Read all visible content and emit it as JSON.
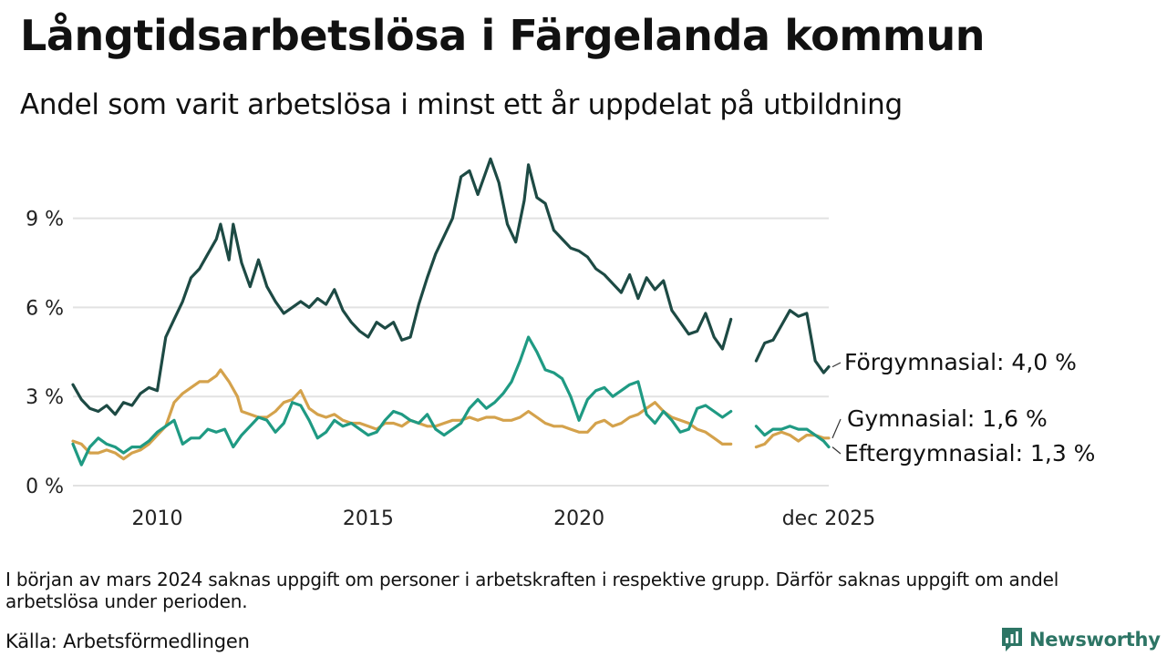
{
  "header": {
    "title": "Långtidsarbetslösa i Färgelanda kommun",
    "subtitle": "Andel som varit arbetslösa i minst ett år uppdelat på utbildning"
  },
  "footer": {
    "note": "I början av mars 2024 saknas uppgift om personer i arbetskraften i respektive grupp. Därför saknas uppgift om andel arbetslösa under perioden.",
    "source": "Källa: Arbetsförmedlingen",
    "brand": "Newsworthy"
  },
  "chart_data": {
    "type": "line",
    "title": "Långtidsarbetslösa i Färgelanda kommun",
    "subtitle": "Andel som varit arbetslösa i minst ett år uppdelat på utbildning",
    "xlabel": "",
    "ylabel": "",
    "x_unit": "year",
    "xlim": [
      2008.0,
      2025.92
    ],
    "ylim": [
      0,
      11.5
    ],
    "grid": true,
    "yticks": [
      {
        "value": 0,
        "label": "0 %"
      },
      {
        "value": 3,
        "label": "3 %"
      },
      {
        "value": 6,
        "label": "6 %"
      },
      {
        "value": 9,
        "label": "9 %"
      }
    ],
    "xticks": [
      {
        "value": 2010,
        "label": "2010"
      },
      {
        "value": 2015,
        "label": "2015"
      },
      {
        "value": 2020,
        "label": "2020"
      },
      {
        "value": 2025.92,
        "label": "dec 2025"
      }
    ],
    "gap": {
      "from": 2023.8,
      "to": 2024.2
    },
    "series": [
      {
        "name": "Förgymnasial",
        "label": "Förgymnasial: 4,0 %",
        "color": "#1d4a44",
        "points": [
          [
            2008.0,
            3.4
          ],
          [
            2008.2,
            2.9
          ],
          [
            2008.4,
            2.6
          ],
          [
            2008.6,
            2.5
          ],
          [
            2008.8,
            2.7
          ],
          [
            2009.0,
            2.4
          ],
          [
            2009.2,
            2.8
          ],
          [
            2009.4,
            2.7
          ],
          [
            2009.6,
            3.1
          ],
          [
            2009.8,
            3.3
          ],
          [
            2010.0,
            3.2
          ],
          [
            2010.2,
            5.0
          ],
          [
            2010.4,
            5.6
          ],
          [
            2010.6,
            6.2
          ],
          [
            2010.8,
            7.0
          ],
          [
            2011.0,
            7.3
          ],
          [
            2011.2,
            7.8
          ],
          [
            2011.4,
            8.3
          ],
          [
            2011.5,
            8.8
          ],
          [
            2011.7,
            7.6
          ],
          [
            2011.8,
            8.8
          ],
          [
            2012.0,
            7.5
          ],
          [
            2012.2,
            6.7
          ],
          [
            2012.4,
            7.6
          ],
          [
            2012.6,
            6.7
          ],
          [
            2012.8,
            6.2
          ],
          [
            2013.0,
            5.8
          ],
          [
            2013.2,
            6.0
          ],
          [
            2013.4,
            6.2
          ],
          [
            2013.6,
            6.0
          ],
          [
            2013.8,
            6.3
          ],
          [
            2014.0,
            6.1
          ],
          [
            2014.2,
            6.6
          ],
          [
            2014.4,
            5.9
          ],
          [
            2014.6,
            5.5
          ],
          [
            2014.8,
            5.2
          ],
          [
            2015.0,
            5.0
          ],
          [
            2015.2,
            5.5
          ],
          [
            2015.4,
            5.3
          ],
          [
            2015.6,
            5.5
          ],
          [
            2015.8,
            4.9
          ],
          [
            2016.0,
            5.0
          ],
          [
            2016.2,
            6.1
          ],
          [
            2016.4,
            7.0
          ],
          [
            2016.6,
            7.8
          ],
          [
            2016.8,
            8.4
          ],
          [
            2017.0,
            9.0
          ],
          [
            2017.2,
            10.4
          ],
          [
            2017.4,
            10.6
          ],
          [
            2017.6,
            9.8
          ],
          [
            2017.8,
            10.6
          ],
          [
            2017.9,
            11.0
          ],
          [
            2018.1,
            10.2
          ],
          [
            2018.3,
            8.8
          ],
          [
            2018.5,
            8.2
          ],
          [
            2018.7,
            9.6
          ],
          [
            2018.8,
            10.8
          ],
          [
            2019.0,
            9.7
          ],
          [
            2019.2,
            9.5
          ],
          [
            2019.4,
            8.6
          ],
          [
            2019.6,
            8.3
          ],
          [
            2019.8,
            8.0
          ],
          [
            2020.0,
            7.9
          ],
          [
            2020.2,
            7.7
          ],
          [
            2020.4,
            7.3
          ],
          [
            2020.6,
            7.1
          ],
          [
            2020.8,
            6.8
          ],
          [
            2021.0,
            6.5
          ],
          [
            2021.2,
            7.1
          ],
          [
            2021.4,
            6.3
          ],
          [
            2021.6,
            7.0
          ],
          [
            2021.8,
            6.6
          ],
          [
            2022.0,
            6.9
          ],
          [
            2022.2,
            5.9
          ],
          [
            2022.4,
            5.5
          ],
          [
            2022.6,
            5.1
          ],
          [
            2022.8,
            5.2
          ],
          [
            2023.0,
            5.8
          ],
          [
            2023.2,
            5.0
          ],
          [
            2023.4,
            4.6
          ],
          [
            2023.6,
            5.6
          ],
          [
            2024.2,
            4.2
          ],
          [
            2024.4,
            4.8
          ],
          [
            2024.6,
            4.9
          ],
          [
            2024.8,
            5.4
          ],
          [
            2025.0,
            5.9
          ],
          [
            2025.2,
            5.7
          ],
          [
            2025.4,
            5.8
          ],
          [
            2025.6,
            4.2
          ],
          [
            2025.8,
            3.8
          ],
          [
            2025.92,
            4.0
          ]
        ]
      },
      {
        "name": "Gymnasial",
        "label": "Gymnasial: 1,6 %",
        "color": "#d4a24c",
        "points": [
          [
            2008.0,
            1.5
          ],
          [
            2008.2,
            1.4
          ],
          [
            2008.4,
            1.1
          ],
          [
            2008.6,
            1.1
          ],
          [
            2008.8,
            1.2
          ],
          [
            2009.0,
            1.1
          ],
          [
            2009.2,
            0.9
          ],
          [
            2009.4,
            1.1
          ],
          [
            2009.6,
            1.2
          ],
          [
            2009.8,
            1.4
          ],
          [
            2010.0,
            1.7
          ],
          [
            2010.2,
            2.0
          ],
          [
            2010.4,
            2.8
          ],
          [
            2010.6,
            3.1
          ],
          [
            2010.8,
            3.3
          ],
          [
            2011.0,
            3.5
          ],
          [
            2011.2,
            3.5
          ],
          [
            2011.4,
            3.7
          ],
          [
            2011.5,
            3.9
          ],
          [
            2011.7,
            3.5
          ],
          [
            2011.9,
            3.0
          ],
          [
            2012.0,
            2.5
          ],
          [
            2012.2,
            2.4
          ],
          [
            2012.4,
            2.3
          ],
          [
            2012.6,
            2.3
          ],
          [
            2012.8,
            2.5
          ],
          [
            2013.0,
            2.8
          ],
          [
            2013.2,
            2.9
          ],
          [
            2013.4,
            3.2
          ],
          [
            2013.6,
            2.6
          ],
          [
            2013.8,
            2.4
          ],
          [
            2014.0,
            2.3
          ],
          [
            2014.2,
            2.4
          ],
          [
            2014.4,
            2.2
          ],
          [
            2014.6,
            2.1
          ],
          [
            2014.8,
            2.1
          ],
          [
            2015.0,
            2.0
          ],
          [
            2015.2,
            1.9
          ],
          [
            2015.4,
            2.1
          ],
          [
            2015.6,
            2.1
          ],
          [
            2015.8,
            2.0
          ],
          [
            2016.0,
            2.2
          ],
          [
            2016.2,
            2.1
          ],
          [
            2016.4,
            2.0
          ],
          [
            2016.6,
            2.0
          ],
          [
            2016.8,
            2.1
          ],
          [
            2017.0,
            2.2
          ],
          [
            2017.2,
            2.2
          ],
          [
            2017.4,
            2.3
          ],
          [
            2017.6,
            2.2
          ],
          [
            2017.8,
            2.3
          ],
          [
            2018.0,
            2.3
          ],
          [
            2018.2,
            2.2
          ],
          [
            2018.4,
            2.2
          ],
          [
            2018.6,
            2.3
          ],
          [
            2018.8,
            2.5
          ],
          [
            2019.0,
            2.3
          ],
          [
            2019.2,
            2.1
          ],
          [
            2019.4,
            2.0
          ],
          [
            2019.6,
            2.0
          ],
          [
            2019.8,
            1.9
          ],
          [
            2020.0,
            1.8
          ],
          [
            2020.2,
            1.8
          ],
          [
            2020.4,
            2.1
          ],
          [
            2020.6,
            2.2
          ],
          [
            2020.8,
            2.0
          ],
          [
            2021.0,
            2.1
          ],
          [
            2021.2,
            2.3
          ],
          [
            2021.4,
            2.4
          ],
          [
            2021.6,
            2.6
          ],
          [
            2021.8,
            2.8
          ],
          [
            2022.0,
            2.5
          ],
          [
            2022.2,
            2.3
          ],
          [
            2022.4,
            2.2
          ],
          [
            2022.6,
            2.1
          ],
          [
            2022.8,
            1.9
          ],
          [
            2023.0,
            1.8
          ],
          [
            2023.2,
            1.6
          ],
          [
            2023.4,
            1.4
          ],
          [
            2023.6,
            1.4
          ],
          [
            2024.2,
            1.3
          ],
          [
            2024.4,
            1.4
          ],
          [
            2024.6,
            1.7
          ],
          [
            2024.8,
            1.8
          ],
          [
            2025.0,
            1.7
          ],
          [
            2025.2,
            1.5
          ],
          [
            2025.4,
            1.7
          ],
          [
            2025.6,
            1.7
          ],
          [
            2025.8,
            1.6
          ],
          [
            2025.92,
            1.6
          ]
        ]
      },
      {
        "name": "Eftergymnasial",
        "label": "Eftergymnasial: 1,3 %",
        "color": "#1f9a83",
        "points": [
          [
            2008.0,
            1.4
          ],
          [
            2008.2,
            0.7
          ],
          [
            2008.4,
            1.3
          ],
          [
            2008.6,
            1.6
          ],
          [
            2008.8,
            1.4
          ],
          [
            2009.0,
            1.3
          ],
          [
            2009.2,
            1.1
          ],
          [
            2009.4,
            1.3
          ],
          [
            2009.6,
            1.3
          ],
          [
            2009.8,
            1.5
          ],
          [
            2010.0,
            1.8
          ],
          [
            2010.2,
            2.0
          ],
          [
            2010.4,
            2.2
          ],
          [
            2010.6,
            1.4
          ],
          [
            2010.8,
            1.6
          ],
          [
            2011.0,
            1.6
          ],
          [
            2011.2,
            1.9
          ],
          [
            2011.4,
            1.8
          ],
          [
            2011.6,
            1.9
          ],
          [
            2011.8,
            1.3
          ],
          [
            2012.0,
            1.7
          ],
          [
            2012.2,
            2.0
          ],
          [
            2012.4,
            2.3
          ],
          [
            2012.6,
            2.2
          ],
          [
            2012.8,
            1.8
          ],
          [
            2013.0,
            2.1
          ],
          [
            2013.2,
            2.8
          ],
          [
            2013.4,
            2.7
          ],
          [
            2013.6,
            2.2
          ],
          [
            2013.8,
            1.6
          ],
          [
            2014.0,
            1.8
          ],
          [
            2014.2,
            2.2
          ],
          [
            2014.4,
            2.0
          ],
          [
            2014.6,
            2.1
          ],
          [
            2014.8,
            1.9
          ],
          [
            2015.0,
            1.7
          ],
          [
            2015.2,
            1.8
          ],
          [
            2015.4,
            2.2
          ],
          [
            2015.6,
            2.5
          ],
          [
            2015.8,
            2.4
          ],
          [
            2016.0,
            2.2
          ],
          [
            2016.2,
            2.1
          ],
          [
            2016.4,
            2.4
          ],
          [
            2016.6,
            1.9
          ],
          [
            2016.8,
            1.7
          ],
          [
            2017.0,
            1.9
          ],
          [
            2017.2,
            2.1
          ],
          [
            2017.4,
            2.6
          ],
          [
            2017.6,
            2.9
          ],
          [
            2017.8,
            2.6
          ],
          [
            2018.0,
            2.8
          ],
          [
            2018.2,
            3.1
          ],
          [
            2018.4,
            3.5
          ],
          [
            2018.6,
            4.2
          ],
          [
            2018.8,
            5.0
          ],
          [
            2019.0,
            4.5
          ],
          [
            2019.2,
            3.9
          ],
          [
            2019.4,
            3.8
          ],
          [
            2019.6,
            3.6
          ],
          [
            2019.8,
            3.0
          ],
          [
            2020.0,
            2.2
          ],
          [
            2020.2,
            2.9
          ],
          [
            2020.4,
            3.2
          ],
          [
            2020.6,
            3.3
          ],
          [
            2020.8,
            3.0
          ],
          [
            2021.0,
            3.2
          ],
          [
            2021.2,
            3.4
          ],
          [
            2021.4,
            3.5
          ],
          [
            2021.6,
            2.4
          ],
          [
            2021.8,
            2.1
          ],
          [
            2022.0,
            2.5
          ],
          [
            2022.2,
            2.2
          ],
          [
            2022.4,
            1.8
          ],
          [
            2022.6,
            1.9
          ],
          [
            2022.8,
            2.6
          ],
          [
            2023.0,
            2.7
          ],
          [
            2023.2,
            2.5
          ],
          [
            2023.4,
            2.3
          ],
          [
            2023.6,
            2.5
          ],
          [
            2024.2,
            2.0
          ],
          [
            2024.4,
            1.7
          ],
          [
            2024.6,
            1.9
          ],
          [
            2024.8,
            1.9
          ],
          [
            2025.0,
            2.0
          ],
          [
            2025.2,
            1.9
          ],
          [
            2025.4,
            1.9
          ],
          [
            2025.6,
            1.7
          ],
          [
            2025.8,
            1.5
          ],
          [
            2025.92,
            1.3
          ]
        ]
      }
    ]
  }
}
